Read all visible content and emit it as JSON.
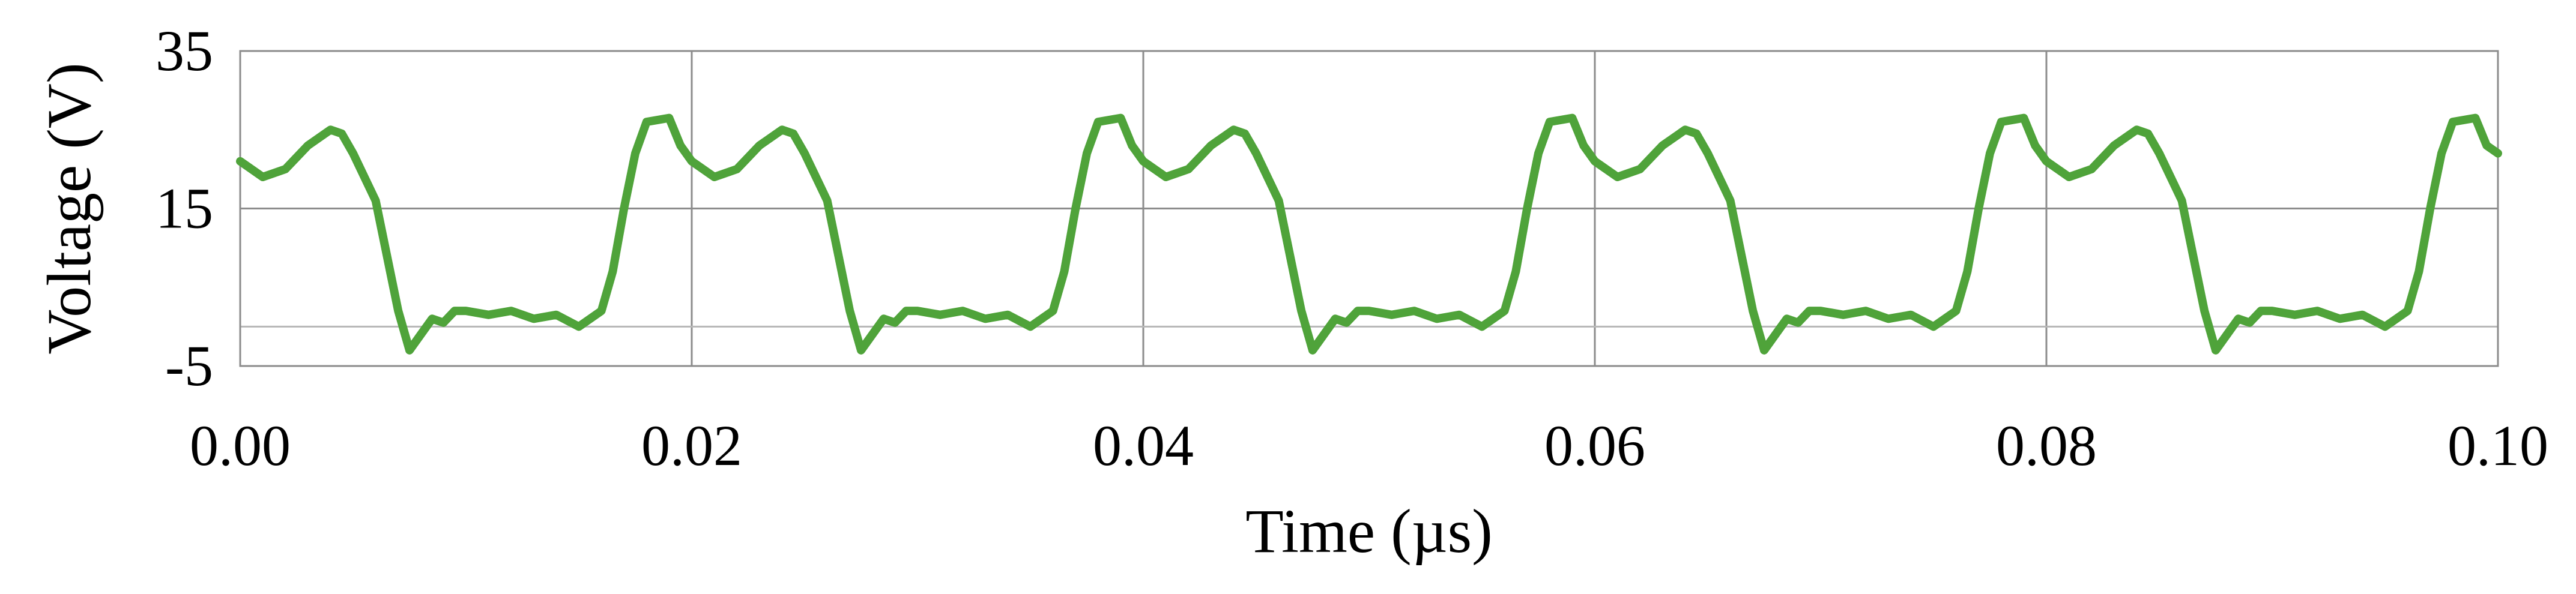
{
  "chart_data": {
    "type": "line",
    "title": "",
    "xlabel": "Time (µs)",
    "ylabel": "Voltage (V)",
    "xlim": [
      0.0,
      0.1
    ],
    "ylim": [
      -5,
      35
    ],
    "x_ticks": [
      "0.00",
      "0.02",
      "0.04",
      "0.06",
      "0.08",
      "0.10"
    ],
    "y_ticks": [
      "-5",
      "15",
      "35"
    ],
    "x_tick_values": [
      0.0,
      0.02,
      0.04,
      0.06,
      0.08,
      0.1
    ],
    "y_tick_values": [
      -5,
      15,
      35
    ],
    "extra_gridline_y": [
      0
    ],
    "grid": true,
    "legend": "none",
    "series_color": "#4fa33a",
    "series": [
      {
        "name": "",
        "x": [
          0.0,
          0.001,
          0.002,
          0.003,
          0.004,
          0.0045,
          0.005,
          0.006,
          0.0065,
          0.007,
          0.0075,
          0.008,
          0.0085,
          0.009,
          0.0095,
          0.01,
          0.011,
          0.012,
          0.013,
          0.014,
          0.015,
          0.016,
          0.0165,
          0.017,
          0.0175,
          0.018,
          0.019,
          0.0195,
          0.02,
          0.021,
          0.022,
          0.023,
          0.024,
          0.0245,
          0.025,
          0.026,
          0.0265,
          0.027,
          0.0275,
          0.028,
          0.0285,
          0.029,
          0.0295,
          0.03,
          0.031,
          0.032,
          0.033,
          0.034,
          0.035,
          0.036,
          0.0365,
          0.037,
          0.0375,
          0.038,
          0.039,
          0.0395,
          0.04,
          0.041,
          0.042,
          0.043,
          0.044,
          0.0445,
          0.045,
          0.046,
          0.0465,
          0.047,
          0.0475,
          0.048,
          0.0485,
          0.049,
          0.0495,
          0.05,
          0.051,
          0.052,
          0.053,
          0.054,
          0.055,
          0.056,
          0.0565,
          0.057,
          0.0575,
          0.058,
          0.059,
          0.0595,
          0.06,
          0.061,
          0.062,
          0.063,
          0.064,
          0.0645,
          0.065,
          0.066,
          0.0665,
          0.067,
          0.0675,
          0.068,
          0.0685,
          0.069,
          0.0695,
          0.07,
          0.071,
          0.072,
          0.073,
          0.074,
          0.075,
          0.076,
          0.0765,
          0.077,
          0.0775,
          0.078,
          0.079,
          0.0795,
          0.08,
          0.081,
          0.082,
          0.083,
          0.084,
          0.0845,
          0.085,
          0.086,
          0.0865,
          0.087,
          0.0875,
          0.088,
          0.0885,
          0.089,
          0.0895,
          0.09,
          0.091,
          0.092,
          0.093,
          0.094,
          0.095,
          0.096,
          0.0965,
          0.097,
          0.0975,
          0.098,
          0.099,
          0.0995,
          0.1
        ],
        "y": [
          21,
          19,
          20,
          23,
          25,
          24.5,
          22,
          16,
          9,
          2,
          -3,
          -1,
          1,
          0.5,
          2,
          2,
          1.5,
          2,
          1,
          1.5,
          0,
          2,
          7,
          15,
          22,
          26,
          26.5,
          23,
          21,
          19,
          20,
          23,
          25,
          24.5,
          22,
          16,
          9,
          2,
          -3,
          -1,
          1,
          0.5,
          2,
          2,
          1.5,
          2,
          1,
          1.5,
          0,
          2,
          7,
          15,
          22,
          26,
          26.5,
          23,
          21,
          19,
          20,
          23,
          25,
          24.5,
          22,
          16,
          9,
          2,
          -3,
          -1,
          1,
          0.5,
          2,
          2,
          1.5,
          2,
          1,
          1.5,
          0,
          2,
          7,
          15,
          22,
          26,
          26.5,
          23,
          21,
          19,
          20,
          23,
          25,
          24.5,
          22,
          16,
          9,
          2,
          -3,
          -1,
          1,
          0.5,
          2,
          2,
          1.5,
          2,
          1,
          1.5,
          0,
          2,
          7,
          15,
          22,
          26,
          26.5,
          23,
          21,
          19,
          20,
          23,
          25,
          24.5,
          22,
          16,
          9,
          2,
          -3,
          -1,
          1,
          0.5,
          2,
          2,
          1.5,
          2,
          1,
          1.5,
          0,
          2,
          7,
          15,
          22,
          26,
          26.5,
          23,
          22
        ]
      }
    ]
  }
}
